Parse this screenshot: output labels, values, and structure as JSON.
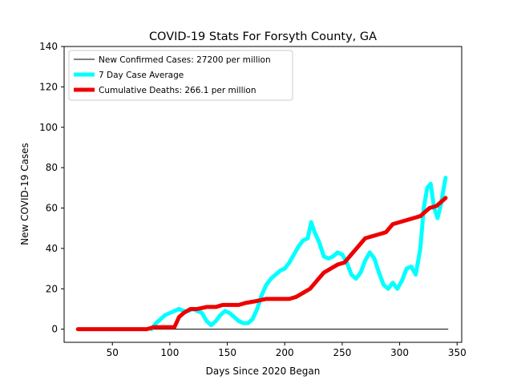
{
  "chart_data": {
    "type": "line",
    "title": "COVID-19 Stats For Forsyth County, GA",
    "xlabel": "Days Since 2020 Began",
    "ylabel": "New COVID-19 Cases",
    "xlim": [
      8,
      354
    ],
    "ylim": [
      -6.5,
      140
    ],
    "xticks": [
      50,
      100,
      150,
      200,
      250,
      300,
      350
    ],
    "yticks": [
      0,
      20,
      40,
      60,
      80,
      100,
      120,
      140
    ],
    "grid": false,
    "legend_position": "top-left",
    "series": [
      {
        "name": "New Confirmed Cases: 27200 per million",
        "color": "#000000",
        "style": "thin",
        "x_start": 20,
        "values": [
          0,
          0,
          0,
          0,
          0,
          0,
          0,
          0,
          0,
          0,
          0,
          0,
          0,
          0,
          0,
          0,
          0,
          0,
          0,
          0,
          0,
          0,
          0,
          0,
          0,
          0,
          0,
          0,
          0,
          0,
          0,
          0,
          0,
          0,
          0,
          0,
          0,
          0,
          0,
          0,
          0,
          0,
          0,
          0,
          0,
          0,
          0,
          0,
          0,
          0,
          0,
          0,
          0,
          0,
          0,
          0,
          0,
          0,
          0,
          0,
          0,
          0,
          0,
          0,
          0,
          0,
          0,
          0,
          0,
          0,
          0,
          0,
          0,
          0,
          0,
          0,
          0,
          0,
          0,
          0,
          0,
          0,
          0,
          0,
          0,
          0,
          0,
          0,
          0,
          0,
          0,
          0,
          0,
          0,
          0,
          0,
          0,
          0,
          0,
          0,
          0,
          0,
          0,
          0,
          0,
          0,
          0,
          0,
          0,
          0,
          0,
          0,
          0,
          0,
          0,
          0,
          0,
          0,
          0,
          0,
          0,
          0,
          0,
          0,
          0,
          0,
          0,
          0,
          0,
          0,
          0,
          0,
          0,
          0,
          0,
          0,
          0,
          0,
          0,
          0,
          0,
          0,
          0,
          0,
          0,
          0,
          0,
          0,
          0,
          0,
          0,
          0,
          0,
          0,
          0,
          0,
          0,
          0,
          0,
          0,
          0,
          0,
          0,
          0,
          0,
          0,
          0,
          0,
          0,
          0,
          0,
          0,
          0,
          0,
          0,
          0,
          0,
          0,
          0,
          0,
          0,
          0,
          0,
          0,
          0,
          0,
          0,
          0,
          0,
          0,
          0,
          0,
          0,
          0,
          0,
          0,
          0,
          0,
          0,
          0,
          0,
          0,
          0,
          0,
          0,
          0,
          0,
          0,
          0,
          0,
          0,
          0,
          0,
          0,
          0,
          0,
          0,
          0,
          0,
          0,
          0,
          0,
          0,
          0,
          0,
          0,
          0,
          0,
          0,
          0,
          0,
          0,
          0,
          0,
          0,
          0,
          0,
          0,
          0,
          0,
          0,
          0,
          0,
          0,
          0,
          0,
          0,
          0,
          0,
          0,
          0,
          0,
          0,
          0,
          0,
          0,
          0,
          0,
          0,
          0,
          0,
          0,
          0,
          0,
          0,
          0,
          0,
          0,
          0,
          0,
          0,
          0,
          0,
          0,
          0,
          0,
          0,
          0,
          0,
          0,
          0,
          0,
          0,
          0,
          0,
          0,
          0,
          0,
          0,
          0,
          0,
          0,
          0,
          0,
          0,
          0,
          0,
          0,
          0,
          0,
          0,
          0,
          0,
          0,
          0,
          0,
          0,
          0,
          0,
          0,
          0,
          0,
          0,
          0,
          0,
          0,
          0,
          0,
          0,
          0,
          0,
          0,
          0
        ]
      },
      {
        "name": "7 Day Case Average",
        "color": "#00ffff",
        "style": "thick",
        "points": [
          [
            84,
            0
          ],
          [
            88,
            3
          ],
          [
            92,
            5
          ],
          [
            96,
            7
          ],
          [
            100,
            8
          ],
          [
            104,
            9
          ],
          [
            108,
            10
          ],
          [
            112,
            9
          ],
          [
            116,
            9
          ],
          [
            120,
            10
          ],
          [
            124,
            9
          ],
          [
            128,
            8
          ],
          [
            132,
            4
          ],
          [
            136,
            2
          ],
          [
            140,
            4
          ],
          [
            144,
            7
          ],
          [
            148,
            9
          ],
          [
            152,
            8
          ],
          [
            156,
            6
          ],
          [
            160,
            4
          ],
          [
            164,
            3
          ],
          [
            168,
            3
          ],
          [
            172,
            5
          ],
          [
            176,
            10
          ],
          [
            180,
            17
          ],
          [
            184,
            22
          ],
          [
            188,
            25
          ],
          [
            192,
            27
          ],
          [
            196,
            29
          ],
          [
            200,
            30
          ],
          [
            204,
            33
          ],
          [
            208,
            37
          ],
          [
            212,
            41
          ],
          [
            216,
            44
          ],
          [
            220,
            45
          ],
          [
            223,
            53
          ],
          [
            226,
            48
          ],
          [
            230,
            43
          ],
          [
            234,
            36
          ],
          [
            238,
            35
          ],
          [
            242,
            36
          ],
          [
            246,
            38
          ],
          [
            250,
            37
          ],
          [
            254,
            33
          ],
          [
            258,
            27
          ],
          [
            262,
            25
          ],
          [
            266,
            28
          ],
          [
            270,
            34
          ],
          [
            274,
            38
          ],
          [
            278,
            35
          ],
          [
            282,
            28
          ],
          [
            286,
            22
          ],
          [
            290,
            20
          ],
          [
            294,
            23
          ],
          [
            298,
            20
          ],
          [
            302,
            24
          ],
          [
            306,
            30
          ],
          [
            310,
            31
          ],
          [
            314,
            27
          ],
          [
            318,
            40
          ],
          [
            321,
            60
          ],
          [
            324,
            70
          ],
          [
            327,
            72
          ],
          [
            330,
            60
          ],
          [
            333,
            55
          ],
          [
            336,
            62
          ],
          [
            339,
            72
          ],
          [
            340,
            75
          ]
        ]
      },
      {
        "name": "Cumulative Deaths: 266.1 per million",
        "color": "#ee0000",
        "style": "thick",
        "points": [
          [
            20,
            0
          ],
          [
            80,
            0
          ],
          [
            86,
            1
          ],
          [
            104,
            1
          ],
          [
            108,
            6
          ],
          [
            112,
            8
          ],
          [
            118,
            10
          ],
          [
            124,
            10
          ],
          [
            132,
            11
          ],
          [
            140,
            11
          ],
          [
            146,
            12
          ],
          [
            152,
            12
          ],
          [
            160,
            12
          ],
          [
            166,
            13
          ],
          [
            176,
            14
          ],
          [
            184,
            15
          ],
          [
            192,
            15
          ],
          [
            198,
            15
          ],
          [
            204,
            15
          ],
          [
            210,
            16
          ],
          [
            216,
            18
          ],
          [
            222,
            20
          ],
          [
            228,
            24
          ],
          [
            234,
            28
          ],
          [
            240,
            30
          ],
          [
            246,
            32
          ],
          [
            252,
            33
          ],
          [
            258,
            37
          ],
          [
            264,
            41
          ],
          [
            270,
            45
          ],
          [
            276,
            46
          ],
          [
            282,
            47
          ],
          [
            288,
            48
          ],
          [
            294,
            52
          ],
          [
            300,
            53
          ],
          [
            306,
            54
          ],
          [
            312,
            55
          ],
          [
            318,
            56
          ],
          [
            322,
            58
          ],
          [
            326,
            60
          ],
          [
            332,
            61
          ],
          [
            336,
            63
          ],
          [
            340,
            65
          ]
        ]
      }
    ]
  }
}
